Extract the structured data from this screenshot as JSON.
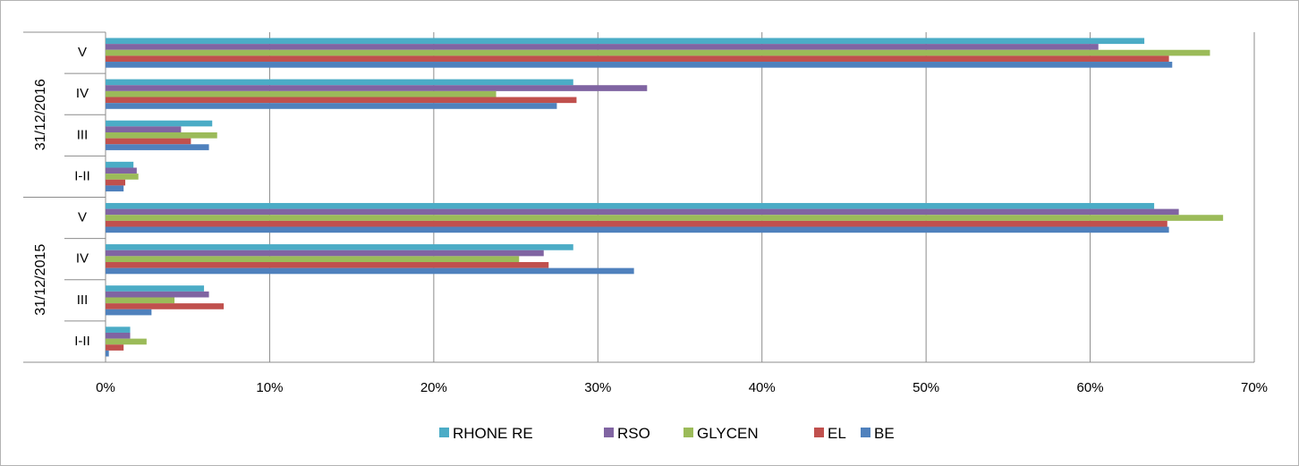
{
  "chart_data": {
    "type": "bar",
    "orientation": "horizontal",
    "groups": [
      {
        "label": "31/12/2016",
        "categories": [
          "V",
          "IV",
          "III",
          "I-II"
        ]
      },
      {
        "label": "31/12/2015",
        "categories": [
          "V",
          "IV",
          "III",
          "I-II"
        ]
      }
    ],
    "series": [
      {
        "name": "RHONE RE",
        "color": "#4bacc6",
        "values": {
          "31/12/2016": [
            63.3,
            28.5,
            6.5,
            1.7
          ],
          "31/12/2015": [
            63.9,
            28.5,
            6.0,
            1.5
          ]
        }
      },
      {
        "name": "RSO",
        "color": "#8064a2",
        "values": {
          "31/12/2016": [
            60.5,
            33.0,
            4.6,
            1.9
          ],
          "31/12/2015": [
            65.4,
            26.7,
            6.3,
            1.5
          ]
        }
      },
      {
        "name": "GLYCEN",
        "color": "#9bbb59",
        "values": {
          "31/12/2016": [
            67.3,
            23.8,
            6.8,
            2.0
          ],
          "31/12/2015": [
            68.1,
            25.2,
            4.2,
            2.5
          ]
        }
      },
      {
        "name": "EL",
        "color": "#c0504d",
        "values": {
          "31/12/2016": [
            64.8,
            28.7,
            5.2,
            1.2
          ],
          "31/12/2015": [
            64.7,
            27.0,
            7.2,
            1.1
          ]
        }
      },
      {
        "name": "BE",
        "color": "#4f81bd",
        "values": {
          "31/12/2016": [
            65.0,
            27.5,
            6.3,
            1.1
          ],
          "31/12/2015": [
            64.8,
            32.2,
            2.8,
            0.2
          ]
        }
      }
    ],
    "x_ticks": [
      "0%",
      "10%",
      "20%",
      "30%",
      "40%",
      "50%",
      "60%",
      "70%"
    ],
    "xlim": [
      0,
      70
    ],
    "grid": true,
    "legend_position": "bottom"
  }
}
